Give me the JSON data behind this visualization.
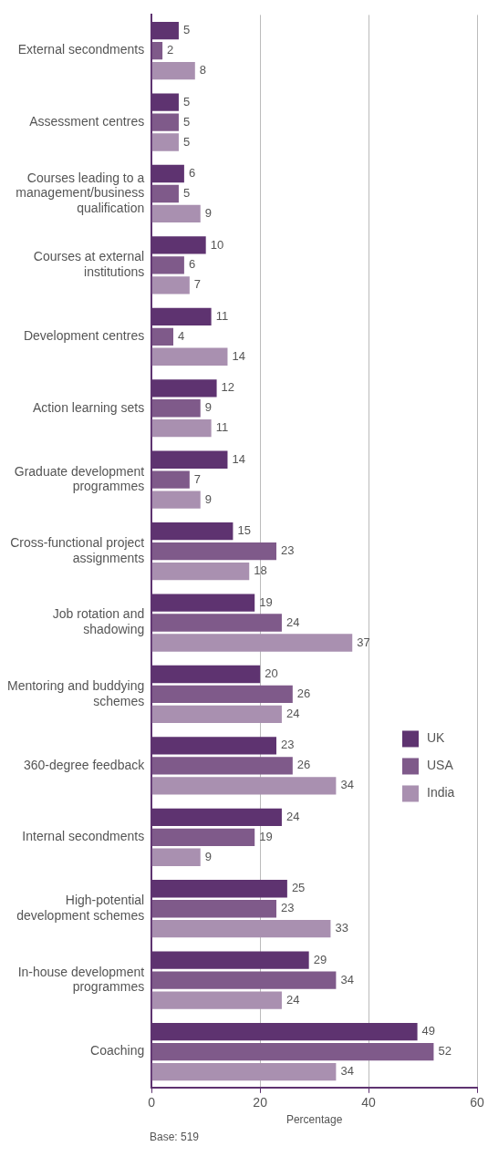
{
  "chart_data": {
    "type": "bar",
    "orientation": "horizontal",
    "xlabel": "Percentage",
    "categories": [
      "External secondments",
      "Assessment centres",
      "Courses leading to a management/business qualification",
      "Courses at external institutions",
      "Development centres",
      "Action learning sets",
      "Graduate development programmes",
      "Cross-functional project assignments",
      "Job rotation and shadowing",
      "Mentoring and buddying schemes",
      "360-degree feedback",
      "Internal secondments",
      "High-potential development schemes",
      "In-house development programmes",
      "Coaching"
    ],
    "series": [
      {
        "name": "UK",
        "color": "#5e3370",
        "values": [
          5,
          5,
          6,
          10,
          11,
          12,
          14,
          15,
          19,
          20,
          23,
          24,
          25,
          29,
          49
        ]
      },
      {
        "name": "USA",
        "color": "#7f5a8a",
        "values": [
          2,
          5,
          5,
          6,
          4,
          9,
          7,
          23,
          24,
          26,
          26,
          19,
          23,
          34,
          52
        ]
      },
      {
        "name": "India",
        "color": "#a990b0",
        "values": [
          8,
          5,
          9,
          7,
          14,
          11,
          9,
          18,
          37,
          24,
          34,
          9,
          33,
          24,
          34
        ]
      }
    ],
    "xlim": [
      0,
      60
    ],
    "xticks": [
      0,
      20,
      40,
      60
    ],
    "grid": "x",
    "legend": "right",
    "data_labels": true,
    "annotations": [
      "Base: 519"
    ]
  }
}
